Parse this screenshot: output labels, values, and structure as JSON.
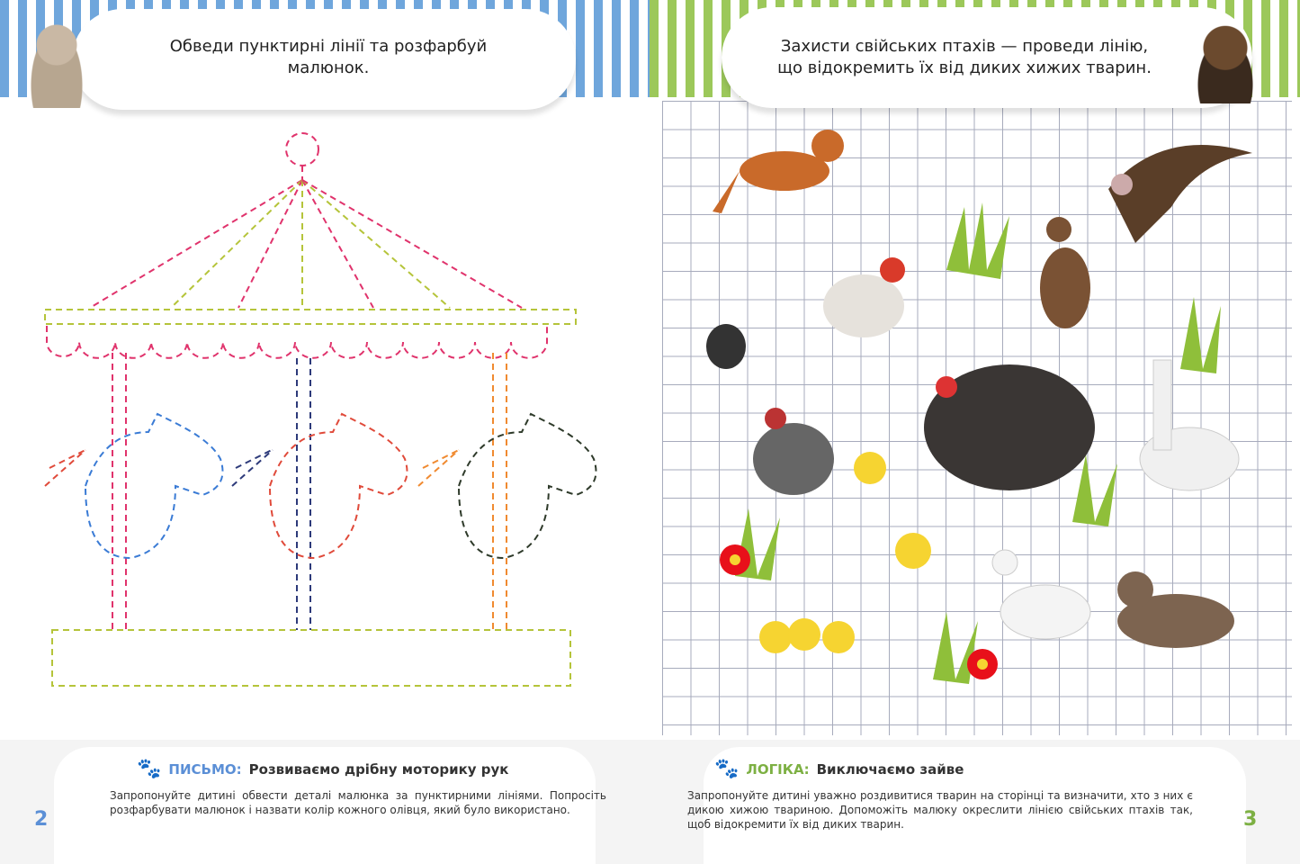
{
  "left_page": {
    "instruction": "Обведи пунктирні лінії та розфарбуй малюнок.",
    "section_label": "ПИСЬМО:",
    "section_title": "Розвиваємо дрібну моторику рук",
    "note": "Запропонуйте дитині обвести деталі малюнка за пунктирними лініями. Попросіть розфарбувати малюнок і назвати колір кожного олівця, який було використано.",
    "page_number": "2",
    "accent": "#5b8fd6",
    "icon": "paw-icon"
  },
  "right_page": {
    "instruction": "Захисти свійських птахів — проведи лінію, що відокремить їх від диких хижих тварин.",
    "section_label": "ЛОГІКА:",
    "section_title": "Виключаємо зайве",
    "note": "Запропонуйте дитині уважно роздивитися тварин на сторінці та визначити, хто з них є дикою хижою твариною. Допоможіть малюку окреслити лінією свійських птахів так, щоб відокремити їх від диких тварин.",
    "page_number": "3",
    "accent": "#7db043",
    "icon": "paw-icon"
  }
}
